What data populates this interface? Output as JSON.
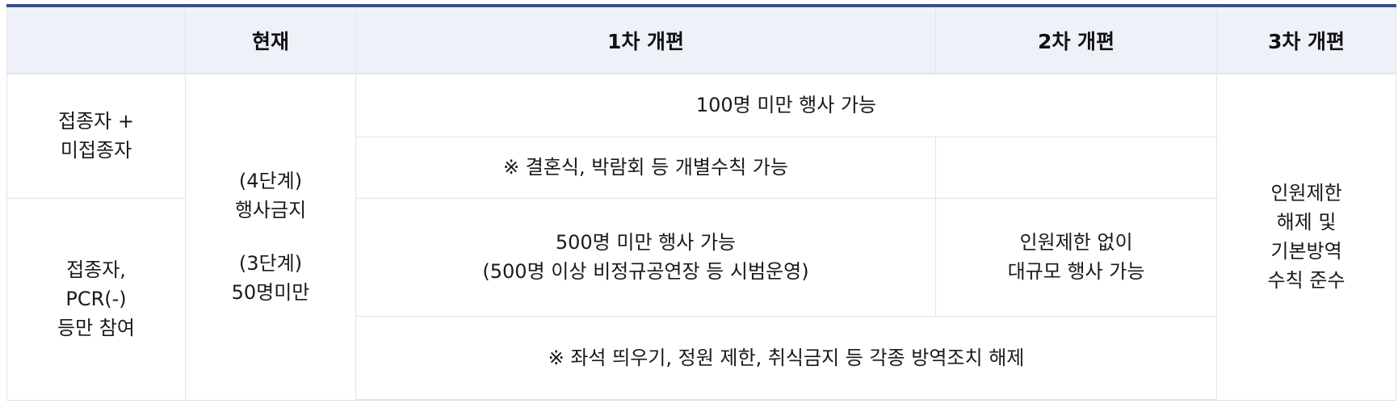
{
  "header": {
    "col_empty": "",
    "col_current": "현재",
    "col_first": "1차 개편",
    "col_second": "2차 개편",
    "col_third": "3차 개편"
  },
  "rows": {
    "group_vaccinated_mixed": [
      "접종자 +",
      "미접종자"
    ],
    "group_vaccinated_pcr": [
      "접종자,",
      "PCR(-)",
      "등만 참여"
    ],
    "current": {
      "line1": "(4단계)",
      "line2": "행사금지",
      "line3": "(3단계)",
      "line4": "50명미만"
    },
    "first_second_under100": "100명 미만 행사 가능",
    "first_exception": "※ 결혼식, 박람회 등 개별수칙 가능",
    "second_exception": "",
    "first_under500": [
      "500명 미만 행사 가능",
      "(500명 이상 비정규공연장 등 시범운영)"
    ],
    "second_no_limit": [
      "인원제한 없이",
      "대규모 행사 가능"
    ],
    "first_second_measures": "※ 좌석 띄우기, 정원 제한, 취식금지 등 각종 방역조치 해제",
    "third": [
      "인원제한",
      "해제 및",
      "기본방역",
      "수칙 준수"
    ]
  }
}
